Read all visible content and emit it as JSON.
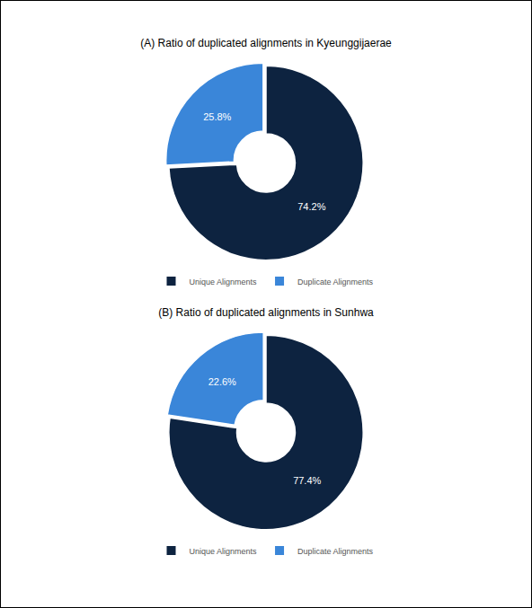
{
  "chart_data": [
    {
      "type": "pie",
      "title": "(A) Ratio of duplicated alignments in Kyeunggijaerae",
      "categories": [
        "Unique Alignments",
        "Duplicate Alignments"
      ],
      "values": [
        74.2,
        25.8
      ],
      "value_labels": [
        "74.2%",
        "25.8%"
      ],
      "colors": [
        "#0d2340",
        "#3a86d9"
      ],
      "data_labels": true,
      "legend": "bottom"
    },
    {
      "type": "pie",
      "title": "(B) Ratio of duplicated alignments in Sunhwa",
      "categories": [
        "Unique Alignments",
        "Duplicate Alignments"
      ],
      "values": [
        77.4,
        22.6
      ],
      "value_labels": [
        "77.4%",
        "22.6%"
      ],
      "colors": [
        "#0d2340",
        "#3a86d9"
      ],
      "data_labels": true,
      "legend": "bottom"
    }
  ]
}
